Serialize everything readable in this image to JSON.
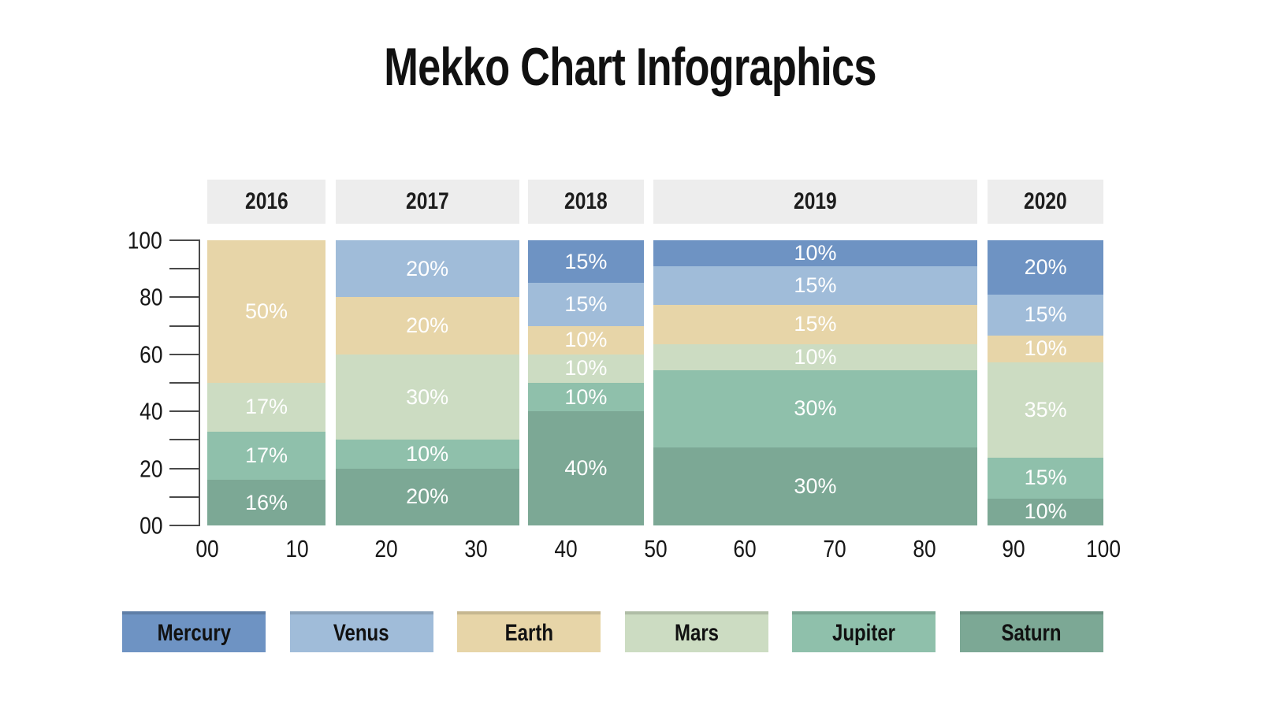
{
  "title": "Mekko Chart Infographics",
  "colors": {
    "background": "#ffffff",
    "header_bg": "#ededed",
    "axis": "#4a4a4a",
    "text": "#161616",
    "segment_label": "#ffffff"
  },
  "chart_data": {
    "type": "mekko",
    "title": "Mekko Chart Infographics",
    "grid": false,
    "legend_position": "bottom",
    "x_axis": {
      "range": [
        0,
        100
      ],
      "labels": [
        {
          "value": 0,
          "text": "00"
        },
        {
          "value": 10,
          "text": "10"
        },
        {
          "value": 20,
          "text": "20"
        },
        {
          "value": 30,
          "text": "30"
        },
        {
          "value": 40,
          "text": "40"
        },
        {
          "value": 50,
          "text": "50"
        },
        {
          "value": 60,
          "text": "60"
        },
        {
          "value": 70,
          "text": "70"
        },
        {
          "value": 80,
          "text": "80"
        },
        {
          "value": 90,
          "text": "90"
        },
        {
          "value": 100,
          "text": "100"
        }
      ]
    },
    "y_axis": {
      "range": [
        0,
        100
      ],
      "tick_values": [
        0,
        10,
        20,
        30,
        40,
        50,
        60,
        70,
        80,
        90,
        100
      ],
      "labels": [
        {
          "value": 100,
          "text": "100"
        },
        {
          "value": 80,
          "text": "80"
        },
        {
          "value": 60,
          "text": "60"
        },
        {
          "value": 40,
          "text": "40"
        },
        {
          "value": 20,
          "text": "20"
        },
        {
          "value": 0,
          "text": "00"
        }
      ]
    },
    "series": [
      {
        "name": "Mercury",
        "color": "#6e93c3"
      },
      {
        "name": "Venus",
        "color": "#a0bcd9"
      },
      {
        "name": "Earth",
        "color": "#e7d5a8"
      },
      {
        "name": "Mars",
        "color": "#ccdcc2"
      },
      {
        "name": "Jupiter",
        "color": "#8fc0ab"
      },
      {
        "name": "Saturn",
        "color": "#7ca895"
      }
    ],
    "columns": [
      {
        "year": "2016",
        "x_start": 0,
        "x_end": 13.2,
        "segments": [
          {
            "series": "Earth",
            "value": 50,
            "label": "50%"
          },
          {
            "series": "Mars",
            "value": 17,
            "label": "17%"
          },
          {
            "series": "Jupiter",
            "value": 17,
            "label": "17%"
          },
          {
            "series": "Saturn",
            "value": 16,
            "label": "16%"
          }
        ]
      },
      {
        "year": "2017",
        "x_start": 14.3,
        "x_end": 34.8,
        "segments": [
          {
            "series": "Venus",
            "value": 20,
            "label": "20%"
          },
          {
            "series": "Earth",
            "value": 20,
            "label": "20%"
          },
          {
            "series": "Mars",
            "value": 30,
            "label": "30%"
          },
          {
            "series": "Jupiter",
            "value": 10,
            "label": "10%"
          },
          {
            "series": "Saturn",
            "value": 20,
            "label": "20%"
          }
        ]
      },
      {
        "year": "2018",
        "x_start": 35.8,
        "x_end": 48.7,
        "segments": [
          {
            "series": "Mercury",
            "value": 15,
            "label": "15%"
          },
          {
            "series": "Venus",
            "value": 15,
            "label": "15%"
          },
          {
            "series": "Earth",
            "value": 10,
            "label": "10%"
          },
          {
            "series": "Mars",
            "value": 10,
            "label": "10%"
          },
          {
            "series": "Jupiter",
            "value": 10,
            "label": "10%"
          },
          {
            "series": "Saturn",
            "value": 40,
            "label": "40%"
          }
        ]
      },
      {
        "year": "2019",
        "x_start": 49.8,
        "x_end": 85.9,
        "segments": [
          {
            "series": "Mercury",
            "value": 10,
            "label": "10%"
          },
          {
            "series": "Venus",
            "value": 15,
            "label": "15%"
          },
          {
            "series": "Earth",
            "value": 15,
            "label": "15%"
          },
          {
            "series": "Mars",
            "value": 10,
            "label": "10%"
          },
          {
            "series": "Jupiter",
            "value": 30,
            "label": "30%"
          },
          {
            "series": "Saturn",
            "value": 30,
            "label": "30%"
          }
        ]
      },
      {
        "year": "2020",
        "x_start": 87.1,
        "x_end": 100,
        "segments": [
          {
            "series": "Mercury",
            "value": 20,
            "label": "20%"
          },
          {
            "series": "Venus",
            "value": 15,
            "label": "15%"
          },
          {
            "series": "Earth",
            "value": 10,
            "label": "10%"
          },
          {
            "series": "Mars",
            "value": 35,
            "label": "35%"
          },
          {
            "series": "Jupiter",
            "value": 15,
            "label": "15%"
          },
          {
            "series": "Saturn",
            "value": 10,
            "label": "10%"
          }
        ]
      }
    ]
  }
}
